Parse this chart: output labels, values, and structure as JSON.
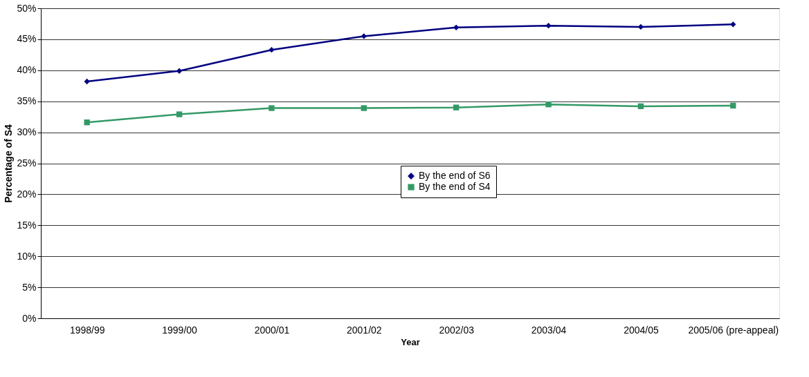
{
  "chart_data": {
    "type": "line",
    "xlabel": "Year",
    "ylabel": "Percentage of S4",
    "categories": [
      "1998/99",
      "1999/00",
      "2000/01",
      "2001/02",
      "2002/03",
      "2003/04",
      "2004/05",
      "2005/06 (pre-appeal)"
    ],
    "series": [
      {
        "name": "By the end of S6",
        "color": "#000080",
        "marker": "diamond",
        "values": [
          38.2,
          39.9,
          43.3,
          45.5,
          46.9,
          47.2,
          47.0,
          47.4
        ]
      },
      {
        "name": "By the end of S4",
        "color": "#339966",
        "marker": "square",
        "values": [
          31.6,
          32.9,
          33.9,
          33.9,
          34.0,
          34.5,
          34.2,
          34.3
        ]
      }
    ],
    "ylim": [
      0,
      50
    ],
    "yticks": [
      {
        "value": 0,
        "label": "0%"
      },
      {
        "value": 5,
        "label": "5%"
      },
      {
        "value": 10,
        "label": "10%"
      },
      {
        "value": 15,
        "label": "15%"
      },
      {
        "value": 20,
        "label": "20%"
      },
      {
        "value": 25,
        "label": "25%"
      },
      {
        "value": 30,
        "label": "30%"
      },
      {
        "value": 35,
        "label": "35%"
      },
      {
        "value": 40,
        "label": "40%"
      },
      {
        "value": 45,
        "label": "45%"
      },
      {
        "value": 50,
        "label": "50%"
      }
    ],
    "grid": "y",
    "legend": "center",
    "line_style": "solid"
  }
}
